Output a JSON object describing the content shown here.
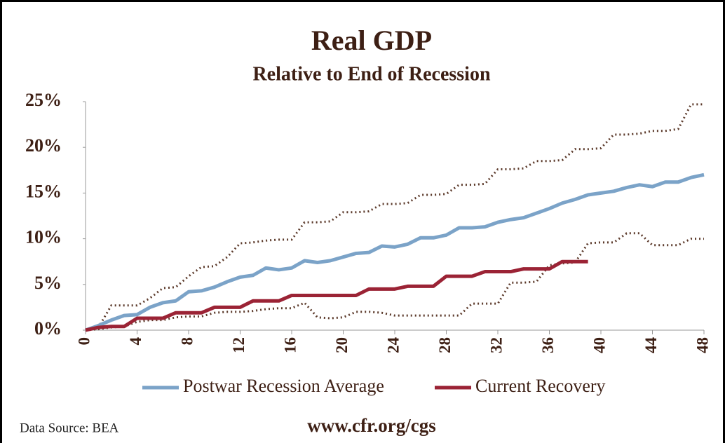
{
  "chart_data": {
    "type": "line",
    "title": "Real GDP",
    "subtitle": "Relative to End of Recession",
    "source": "Data Source: BEA",
    "footer": "www.cfr.org/cgs",
    "x": [
      0,
      1,
      2,
      3,
      4,
      5,
      6,
      7,
      8,
      9,
      10,
      11,
      12,
      13,
      14,
      15,
      16,
      17,
      18,
      19,
      20,
      21,
      22,
      23,
      24,
      25,
      26,
      27,
      28,
      29,
      30,
      31,
      32,
      33,
      34,
      35,
      36,
      37,
      38,
      39,
      40,
      41,
      42,
      43,
      44,
      45,
      46,
      47,
      48
    ],
    "xlim": [
      0,
      48
    ],
    "xticks": [
      0,
      4,
      8,
      12,
      16,
      20,
      24,
      28,
      32,
      36,
      40,
      44,
      48
    ],
    "ylim": [
      0,
      25
    ],
    "yticks": [
      {
        "value": 0,
        "label": "0%"
      },
      {
        "value": 5,
        "label": "5%"
      },
      {
        "value": 10,
        "label": "10%"
      },
      {
        "value": 15,
        "label": "15%"
      },
      {
        "value": 20,
        "label": "20%"
      },
      {
        "value": 25,
        "label": "25%"
      }
    ],
    "grid": false,
    "series": [
      {
        "color": "#5c3a2b",
        "dash": "dotted",
        "values": [
          0,
          0.3,
          2.7,
          2.7,
          2.7,
          3.5,
          4.6,
          4.7,
          5.9,
          6.9,
          7.0,
          8.0,
          9.5,
          9.6,
          9.8,
          9.9,
          9.9,
          11.8,
          11.8,
          11.9,
          12.9,
          12.9,
          13.0,
          13.8,
          13.8,
          13.9,
          14.8,
          14.8,
          14.9,
          15.9,
          15.9,
          16.0,
          17.6,
          17.6,
          17.7,
          18.5,
          18.5,
          18.6,
          19.8,
          19.8,
          19.9,
          21.4,
          21.4,
          21.5,
          21.8,
          21.8,
          22.0,
          24.7,
          24.7
        ]
      },
      {
        "color": "#5c3a2b",
        "dash": "dotted",
        "values": [
          0,
          0.1,
          0.3,
          0.4,
          0.9,
          1.1,
          1.1,
          1.4,
          1.5,
          1.5,
          1.9,
          2.0,
          2.0,
          2.1,
          2.3,
          2.4,
          2.4,
          3.0,
          1.4,
          1.3,
          1.4,
          2.0,
          2.0,
          1.9,
          1.6,
          1.6,
          1.6,
          1.6,
          1.6,
          1.6,
          2.9,
          2.9,
          2.9,
          5.2,
          5.2,
          5.3,
          7.1,
          7.3,
          7.4,
          9.5,
          9.6,
          9.6,
          10.6,
          10.6,
          9.3,
          9.3,
          9.3,
          10.0,
          10.0
        ]
      },
      {
        "name": "Postwar Recession Average",
        "color": "#7ba3c8",
        "values": [
          0,
          0.5,
          1.1,
          1.6,
          1.7,
          2.5,
          3.0,
          3.2,
          4.2,
          4.3,
          4.7,
          5.3,
          5.8,
          6.0,
          6.8,
          6.6,
          6.8,
          7.6,
          7.4,
          7.6,
          8.0,
          8.4,
          8.5,
          9.2,
          9.1,
          9.4,
          10.1,
          10.1,
          10.4,
          11.2,
          11.2,
          11.3,
          11.8,
          12.1,
          12.3,
          12.8,
          13.3,
          13.9,
          14.3,
          14.8,
          15.0,
          15.2,
          15.6,
          15.9,
          15.7,
          16.2,
          16.2,
          16.7,
          17.0
        ]
      },
      {
        "name": "Current Recovery",
        "color": "#9b2335",
        "values": [
          0,
          0.3,
          0.4,
          0.4,
          1.3,
          1.3,
          1.3,
          1.9,
          1.9,
          1.9,
          2.5,
          2.5,
          2.5,
          3.2,
          3.2,
          3.2,
          3.8,
          3.8,
          3.8,
          3.8,
          3.8,
          3.8,
          4.5,
          4.5,
          4.5,
          4.8,
          4.8,
          4.8,
          5.9,
          5.9,
          5.9,
          6.4,
          6.4,
          6.4,
          6.7,
          6.7,
          6.7,
          7.5,
          7.5,
          7.5,
          null,
          null,
          null,
          null,
          null,
          null,
          null,
          null,
          null
        ]
      }
    ]
  }
}
